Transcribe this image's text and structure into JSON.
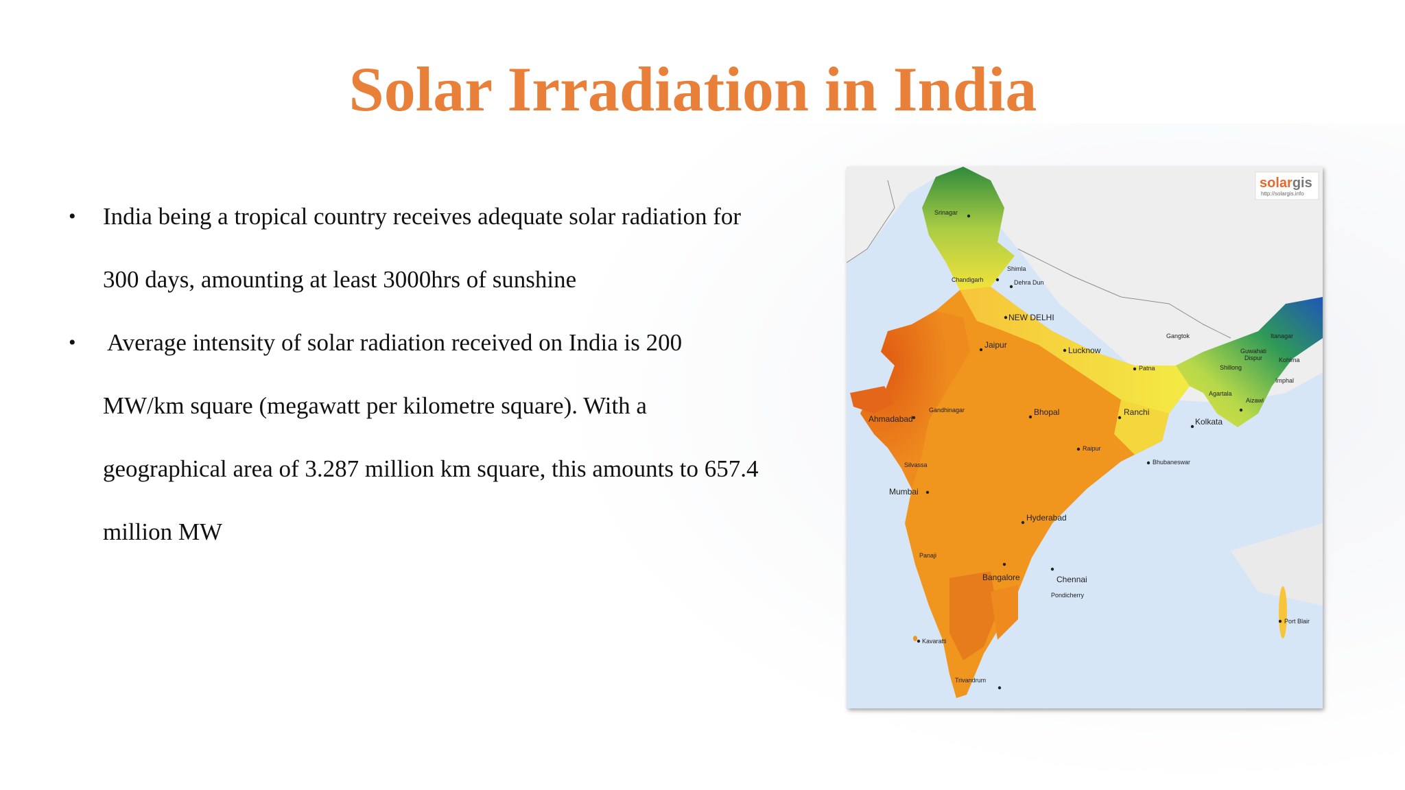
{
  "slide": {
    "title": "Solar Irradiation in India",
    "bullets": [
      "India being a tropical country receives adequate solar radiation for 300 days, amounting at least 3000hrs of sunshine",
      "Average intensity of solar radiation received on India is 200 MW/km square (megawatt per kilometre square). With a geographical area of 3.287 million km square, this amounts to 657.4 million MW"
    ],
    "bullet_symbol": "•",
    "title_color": "#E8803A"
  },
  "map": {
    "logo": {
      "brand_left": "solar",
      "brand_right": "gis",
      "url": "http://solargis.info"
    },
    "cities": {
      "srinagar": "Srinagar",
      "shimla": "Shimla",
      "chandigarh": "Chandigarh",
      "dehradun": "Dehra Dun",
      "new_delhi": "NEW DELHI",
      "jaipur": "Jaipur",
      "lucknow": "Lucknow",
      "patna": "Patna",
      "gangtok": "Gangtok",
      "guwahati": "Guwahati",
      "dispur": "Dispur",
      "itanagar": "Itanagar",
      "kohima": "Kohima",
      "shillong": "Shillong",
      "imphal": "Imphal",
      "agartala": "Agartala",
      "aizawl": "Aizawl",
      "gandhinagar": "Gandhinagar",
      "ahmadabad": "Ahmadabad",
      "bhopal": "Bhopal",
      "ranchi": "Ranchi",
      "kolkata": "Kolkata",
      "raipur": "Raipur",
      "silvassa": "Silvassa",
      "bhubaneswar": "Bhubaneswar",
      "mumbai": "Mumbai",
      "hyderabad": "Hyderabad",
      "panaji": "Panaji",
      "bangalore": "Bangalore",
      "chennai": "Chennai",
      "pondicherry": "Pondicherry",
      "kavaratti": "Kavaratti",
      "trivandrum": "Trivandrum",
      "port_blair": "Port Blair"
    }
  }
}
